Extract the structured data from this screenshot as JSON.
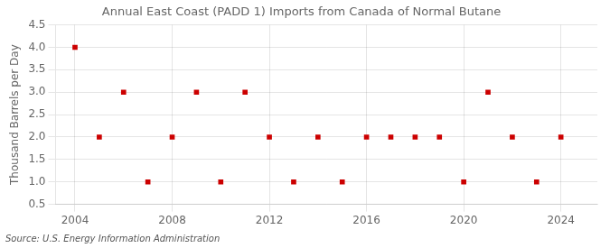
{
  "chart_data": {
    "type": "scatter",
    "title": "Annual East Coast (PADD 1) Imports from Canada of Normal Butane",
    "ylabel": "Thousand Barrels per Day",
    "annotation": "Source: U.S. Energy Information Administration",
    "x": [
      2004,
      2005,
      2006,
      2007,
      2008,
      2009,
      2010,
      2011,
      2012,
      2013,
      2014,
      2015,
      2016,
      2017,
      2018,
      2019,
      2020,
      2021,
      2022,
      2023,
      2024
    ],
    "values": [
      4.0,
      2.0,
      3.0,
      1.0,
      2.0,
      3.0,
      1.0,
      3.0,
      2.0,
      1.0,
      2.0,
      1.0,
      2.0,
      2.0,
      2.0,
      2.0,
      1.0,
      3.0,
      2.0,
      1.0,
      2.0
    ],
    "color": "#cc0000",
    "marker": "square",
    "xlim": [
      2003.2,
      2025.5
    ],
    "xticks": [
      2004,
      2008,
      2012,
      2016,
      2020,
      2024
    ],
    "ylim": [
      0.5,
      4.5
    ],
    "yticks": [
      0.5,
      {
        "value": 1.0,
        "label": "1.0"
      },
      1.5,
      {
        "value": 2.0,
        "label": "2.0"
      },
      2.5,
      {
        "value": 3.0,
        "label": "3.0"
      },
      3.5,
      {
        "value": 4.0,
        "label": "4.0"
      },
      4.5
    ],
    "grid": true
  }
}
